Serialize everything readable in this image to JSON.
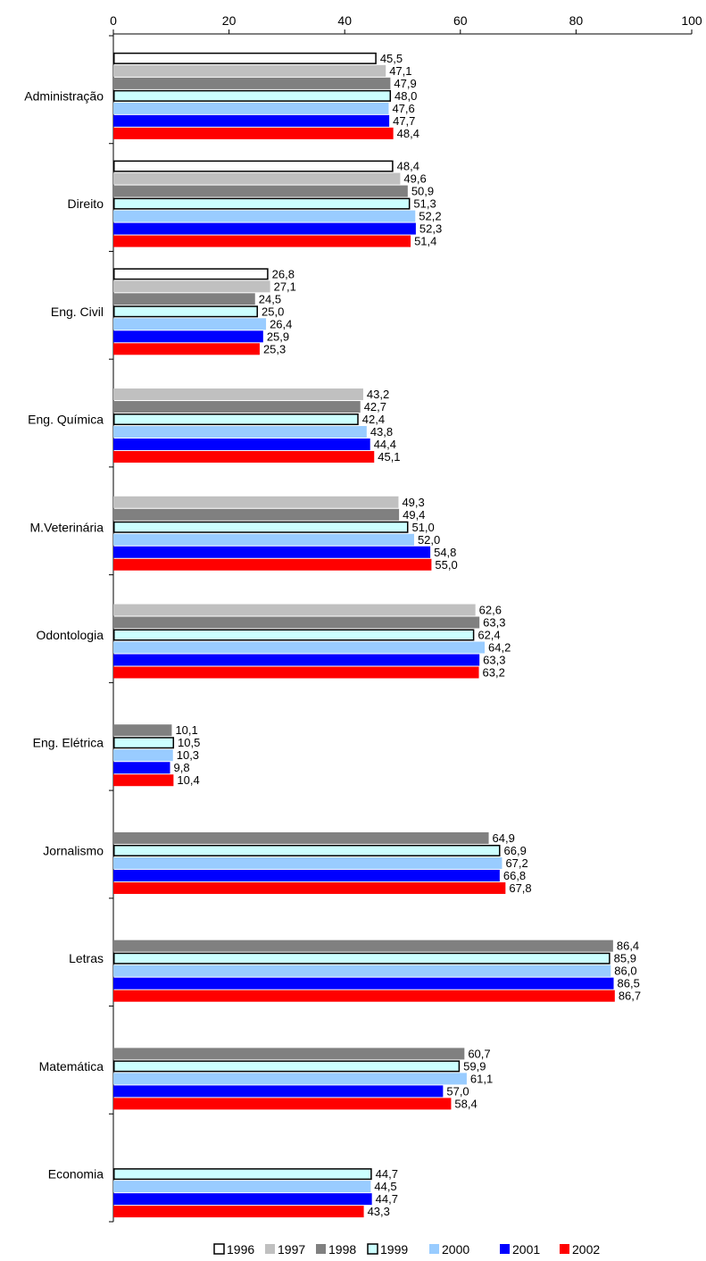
{
  "chart_data": {
    "type": "bar",
    "orientation": "horizontal",
    "title": "",
    "xlabel": "",
    "ylabel": "",
    "xlim": [
      0,
      100
    ],
    "x_ticks": [
      "0",
      "20",
      "40",
      "60",
      "80",
      "100"
    ],
    "x_tick_values": [
      0,
      20,
      40,
      60,
      80,
      100
    ],
    "grid": false,
    "legend_position": "bottom",
    "categories": [
      "Administração",
      "Direito",
      "Eng. Civil",
      "Eng. Química",
      "M.Veterinária",
      "Odontologia",
      "Eng. Elétrica",
      "Jornalismo",
      "Letras",
      "Matemática",
      "Economia"
    ],
    "series": [
      {
        "name": "1996",
        "color": "#ffffff",
        "outline": "#000000",
        "values": [
          45.5,
          48.4,
          26.8,
          null,
          null,
          null,
          null,
          null,
          null,
          null,
          null
        ],
        "labels": [
          "45,5",
          "48,4",
          "26,8",
          null,
          null,
          null,
          null,
          null,
          null,
          null,
          null
        ]
      },
      {
        "name": "1997",
        "color": "#c0c0c0",
        "values": [
          47.1,
          49.6,
          27.1,
          43.2,
          49.3,
          62.6,
          null,
          null,
          null,
          null,
          null
        ],
        "labels": [
          "47,1",
          "49,6",
          "27,1",
          "43,2",
          "49,3",
          "62,6",
          null,
          null,
          null,
          null,
          null
        ]
      },
      {
        "name": "1998",
        "color": "#808080",
        "values": [
          47.9,
          50.9,
          24.5,
          42.7,
          49.4,
          63.3,
          10.1,
          64.9,
          86.4,
          60.7,
          null
        ],
        "labels": [
          "47,9",
          "50,9",
          "24,5",
          "42,7",
          "49,4",
          "63,3",
          "10,1",
          "64,9",
          "86,4",
          "60,7",
          null
        ]
      },
      {
        "name": "1999",
        "color": "#ccffff",
        "outline": "#000000",
        "values": [
          48.0,
          51.3,
          25.0,
          42.4,
          51.0,
          62.4,
          10.5,
          66.9,
          85.9,
          59.9,
          44.7
        ],
        "labels": [
          "48,0",
          "51,3",
          "25,0",
          "42,4",
          "51,0",
          "62,4",
          "10,5",
          "66,9",
          "85,9",
          "59,9",
          "44,7"
        ]
      },
      {
        "name": "2000",
        "color": "#99ccff",
        "values": [
          47.6,
          52.2,
          26.4,
          43.8,
          52.0,
          64.2,
          10.3,
          67.2,
          86.0,
          61.1,
          44.5
        ],
        "labels": [
          "47,6",
          "52,2",
          "26,4",
          "43,8",
          "52,0",
          "64,2",
          "10,3",
          "67,2",
          "86,0",
          "61,1",
          "44,5"
        ]
      },
      {
        "name": "2001",
        "color": "#0000ff",
        "values": [
          47.7,
          52.3,
          25.9,
          44.4,
          54.8,
          63.3,
          9.8,
          66.8,
          86.5,
          57.0,
          44.7
        ],
        "labels": [
          "47,7",
          "52,3",
          "25,9",
          "44,4",
          "54,8",
          "63,3",
          "9,8",
          "66,8",
          "86,5",
          "57,0",
          "44,7"
        ]
      },
      {
        "name": "2002",
        "color": "#ff0000",
        "values": [
          48.4,
          51.4,
          25.3,
          45.1,
          55.0,
          63.2,
          10.4,
          67.8,
          86.7,
          58.4,
          43.3
        ],
        "labels": [
          "48,4",
          "51,4",
          "25,3",
          "45,1",
          "55,0",
          "63,2",
          "10,4",
          "67,8",
          "86,7",
          "58,4",
          "43,3"
        ]
      }
    ]
  }
}
